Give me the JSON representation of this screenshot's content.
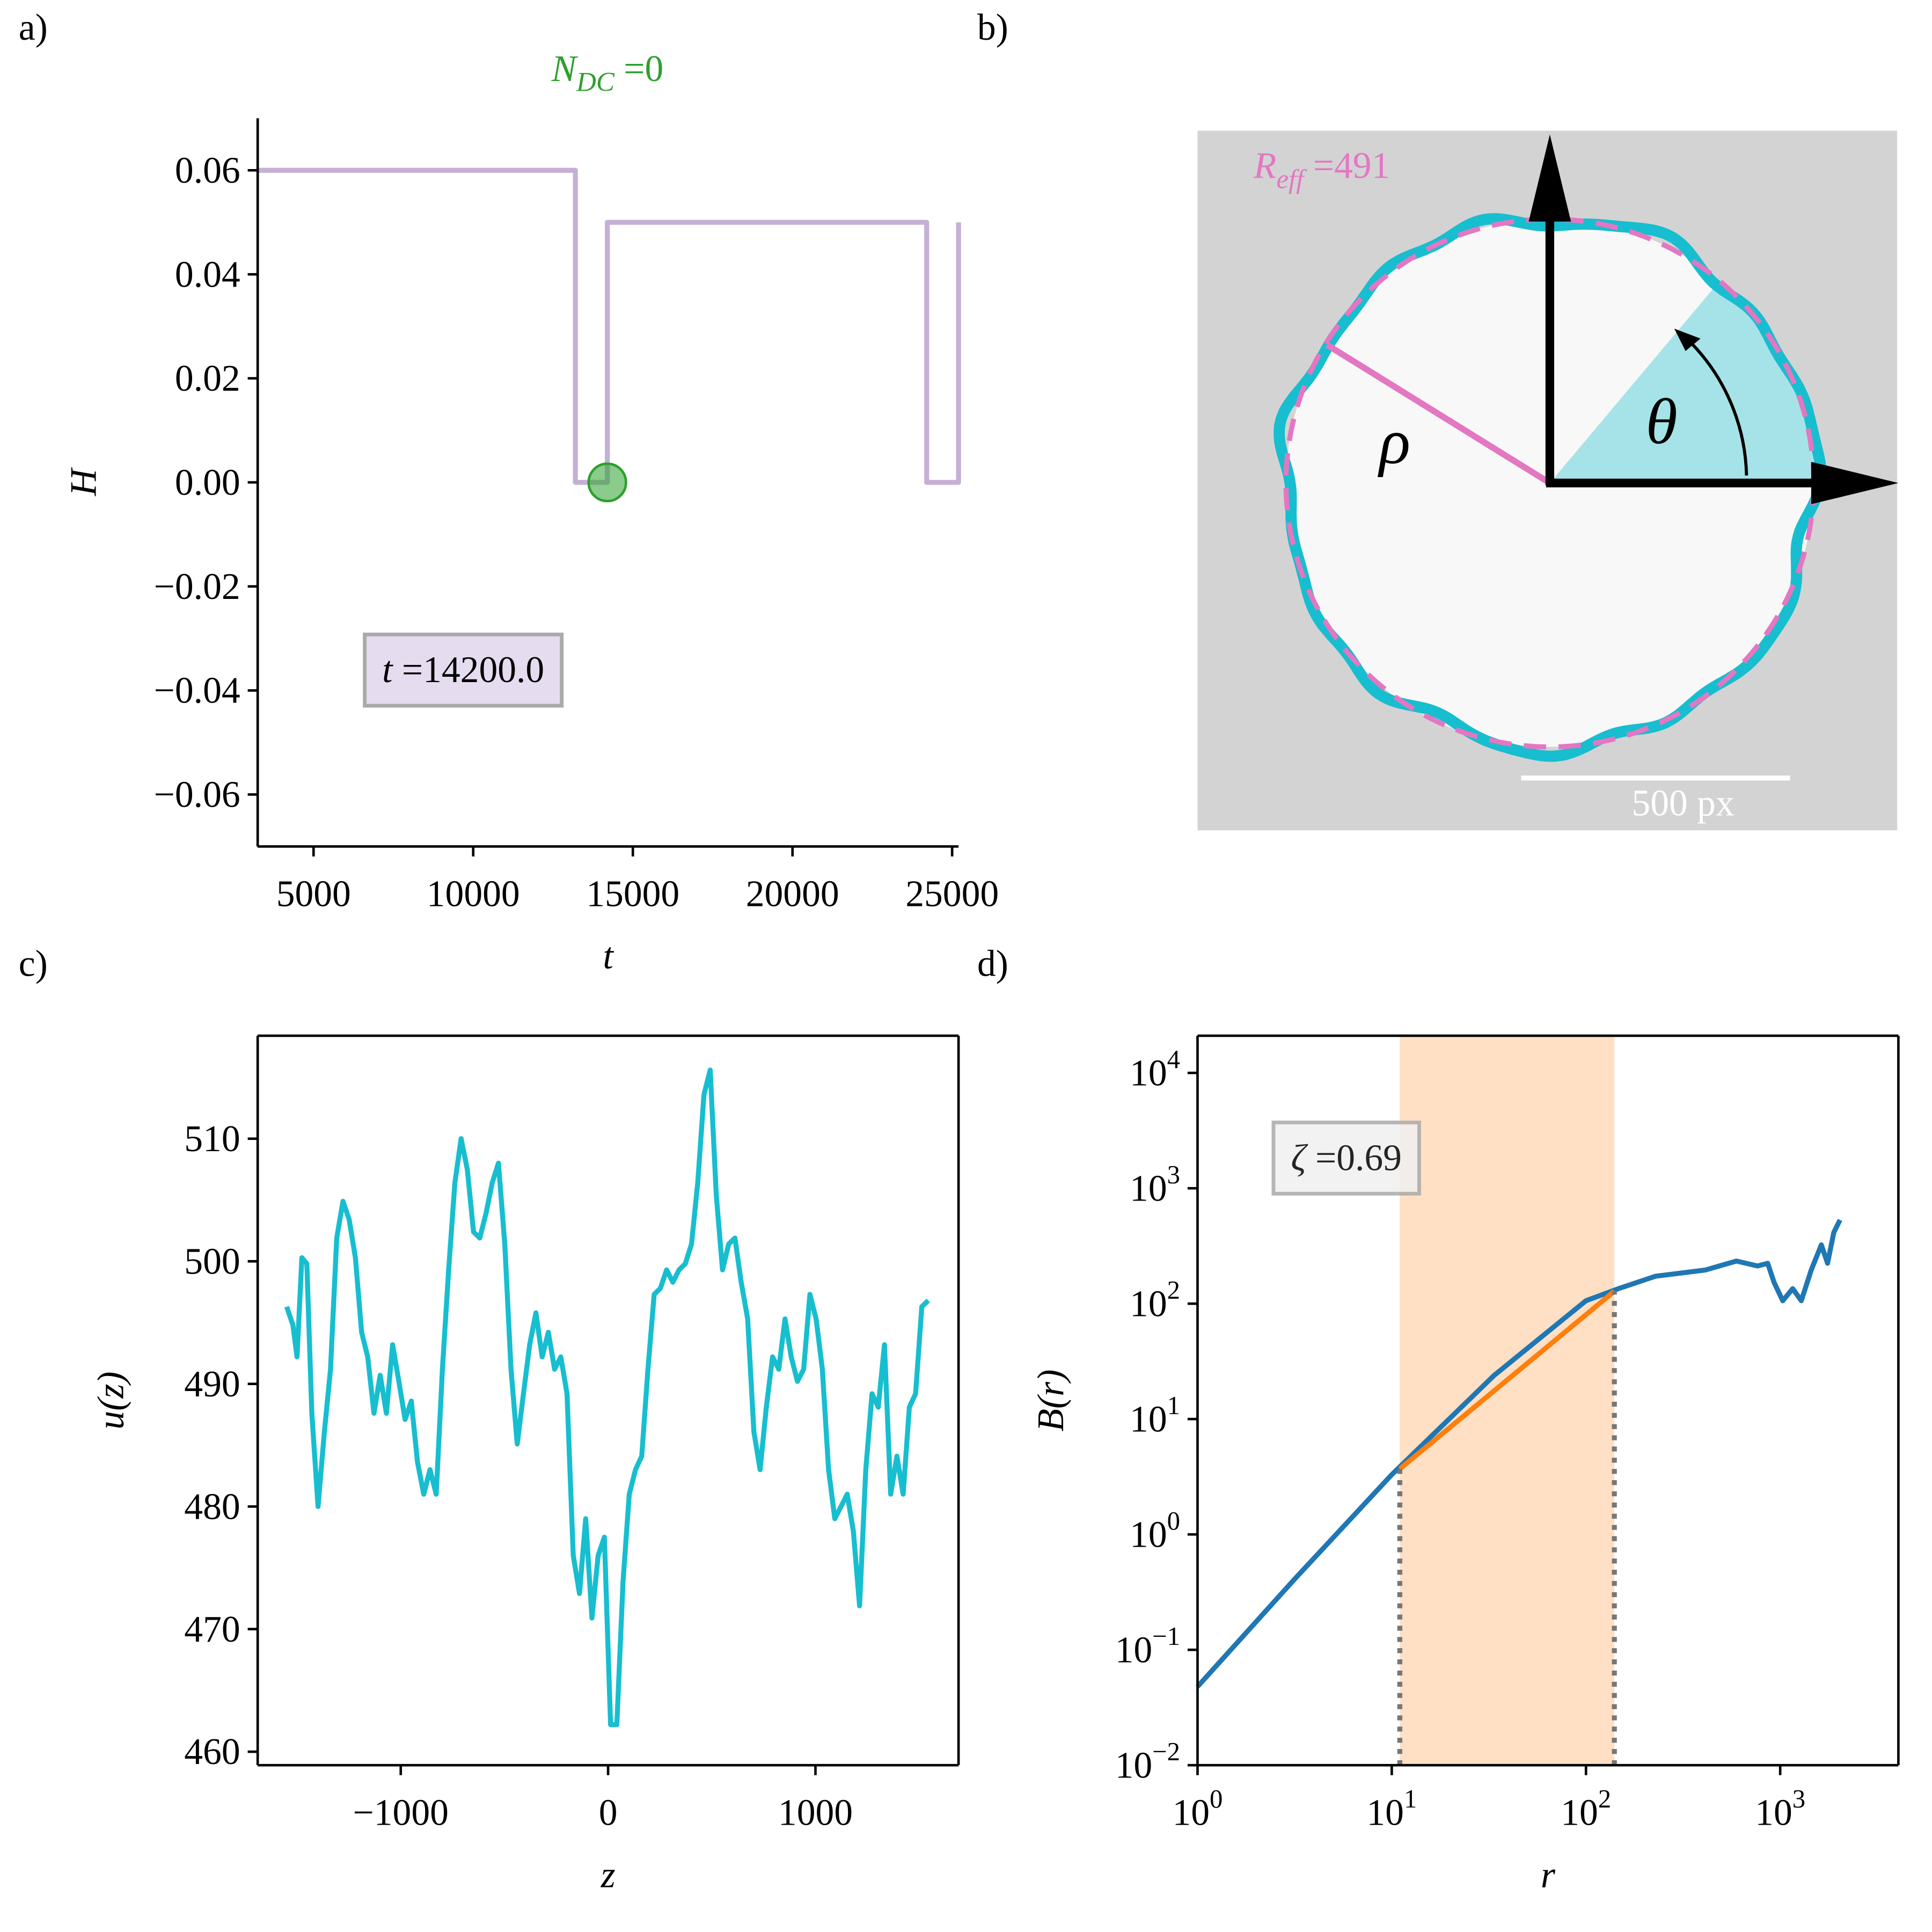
{
  "chart_data": [
    {
      "panel": "a)",
      "type": "line",
      "title": [
        "N",
        "DC",
        " =0"
      ],
      "title_color": "#2ca02c",
      "xlabel": "t",
      "ylabel": "H",
      "spines": [
        "left",
        "bottom"
      ],
      "xlim": [
        3250,
        25200
      ],
      "ylim": [
        -0.07,
        0.07
      ],
      "xticks": [
        5000,
        10000,
        15000,
        20000,
        25000
      ],
      "yticks": [
        0.06,
        0.04,
        0.02,
        {
          "value": 0,
          "label": "0.00"
        },
        {
          "value": -0.02,
          "label": "−0.02"
        },
        {
          "value": -0.04,
          "label": "−0.04"
        },
        {
          "value": -0.06,
          "label": "−0.06"
        }
      ],
      "series": [
        {
          "color": "#c5b0d5",
          "x": [
            3250,
            13200,
            13200,
            14200,
            14200,
            24200,
            24200,
            25200,
            25200
          ],
          "values": [
            0.06,
            0.06,
            0,
            0,
            0.05,
            0.05,
            0,
            0,
            0.05
          ]
        }
      ],
      "points": [
        {
          "x": 14200,
          "y": 0,
          "color": "#2ca02c"
        }
      ],
      "annotation": [
        "t",
        " =14200.0"
      ],
      "annotation_fill": "#e6dcf0"
    },
    {
      "panel": "b)",
      "type": "diagram",
      "annotation": [
        "R",
        "eff",
        " =491"
      ],
      "scale_bar": "500 px",
      "radius_symbol": "ρ",
      "angle_symbol": "θ"
    },
    {
      "panel": "c)",
      "type": "line",
      "xlabel": "z",
      "ylabel": "u(z)",
      "spines": [
        "left",
        "bottom",
        "top",
        "right"
      ],
      "xlim": [
        -1690,
        1690
      ],
      "ylim": [
        458.9,
        518.4
      ],
      "xticks": [
        {
          "value": -1000,
          "label": "−1000"
        },
        0,
        1000
      ],
      "yticks": [
        460,
        470,
        480,
        490,
        500,
        510
      ],
      "series": [
        {
          "color": "#17becf",
          "x": [
            -1550,
            -1520,
            -1500,
            -1477,
            -1453,
            -1429,
            -1399,
            -1369,
            -1339,
            -1309,
            -1279,
            -1249,
            -1219,
            -1189,
            -1159,
            -1129,
            -1099,
            -1069,
            -1039,
            -1009,
            -979,
            -949,
            -919,
            -889,
            -859,
            -829,
            -799,
            -769,
            -739,
            -709,
            -679,
            -649,
            -619,
            -589,
            -559,
            -529,
            -498,
            -468,
            -438,
            -408,
            -378,
            -348,
            -318,
            -288,
            -258,
            -228,
            -198,
            -168,
            -138,
            -108,
            -78,
            -48,
            -18,
            12,
            42,
            72,
            102,
            132,
            162,
            192,
            222,
            252,
            282,
            312,
            342,
            372,
            402,
            432,
            462,
            492,
            522,
            552,
            582,
            612,
            642,
            673,
            703,
            733,
            763,
            793,
            823,
            853,
            883,
            913,
            943,
            973,
            1003,
            1033,
            1063,
            1093,
            1123,
            1153,
            1183,
            1213,
            1243,
            1273,
            1303,
            1333,
            1363,
            1393,
            1423,
            1453,
            1483,
            1513,
            1544
          ],
          "values": [
            496.3,
            494.8,
            492.2,
            500.3,
            499.8,
            487.6,
            480,
            486,
            491.2,
            501.9,
            504.9,
            503.4,
            500.3,
            494.2,
            492.2,
            487.6,
            490.7,
            487.6,
            493.2,
            490.2,
            487.1,
            488.6,
            483.6,
            481,
            483,
            481,
            491.2,
            499.3,
            506.4,
            510,
            507.5,
            502.4,
            501.9,
            503.9,
            506.4,
            508,
            501.4,
            491.2,
            485.1,
            489.2,
            493.2,
            495.8,
            492.2,
            494.2,
            491.2,
            492.2,
            489.2,
            476,
            472.9,
            479,
            470.9,
            476,
            477.5,
            462.2,
            462.2,
            473.9,
            481,
            483,
            484.1,
            491.2,
            497.3,
            497.8,
            499.3,
            498.3,
            499.3,
            499.8,
            501.4,
            506.4,
            513.6,
            515.6,
            505.4,
            499.3,
            501.4,
            501.9,
            498.3,
            495.3,
            486.1,
            483,
            488.1,
            492.2,
            491.2,
            495.3,
            492.2,
            490.2,
            491.2,
            497.3,
            495.3,
            491.2,
            483,
            479,
            480,
            481,
            478,
            471.9,
            483,
            489.2,
            488.1,
            493.2,
            481,
            484.1,
            481,
            488.1,
            489.2,
            496.3,
            496.8
          ]
        }
      ]
    },
    {
      "panel": "d)",
      "type": "line",
      "xlabel": "r",
      "ylabel": "B(r)",
      "xlog": true,
      "ylog": true,
      "spines": [
        "left",
        "bottom",
        "top",
        "right"
      ],
      "xlim": [
        1,
        4060
      ],
      "ylim": [
        0.01,
        21000
      ],
      "xticks": [
        {
          "value": 1,
          "label": [
            "10",
            "0"
          ]
        },
        {
          "value": 10,
          "label": [
            "10",
            "1"
          ]
        },
        {
          "value": 100,
          "label": [
            "10",
            "2"
          ]
        },
        {
          "value": 1000,
          "label": [
            "10",
            "3"
          ]
        }
      ],
      "yticks": [
        {
          "value": 0.01,
          "label": [
            "10",
            "−2"
          ]
        },
        {
          "value": 0.1,
          "label": [
            "10",
            "−1"
          ]
        },
        {
          "value": 1,
          "label": [
            "10",
            "0"
          ]
        },
        {
          "value": 10,
          "label": [
            "10",
            "1"
          ]
        },
        {
          "value": 100,
          "label": [
            "10",
            "2"
          ]
        },
        {
          "value": 1000,
          "label": [
            "10",
            "3"
          ]
        },
        {
          "value": 10000,
          "label": [
            "10",
            "4"
          ]
        }
      ],
      "span": {
        "x": [
          11,
          140
        ],
        "color": "#ffe0c4"
      },
      "series": [
        {
          "color": "#1f77b4",
          "x": [
            1,
            3.16,
            10,
            33.6,
            100,
            147,
            228,
            412,
            595,
            765,
            862,
            930,
            1030,
            1160,
            1285,
            1445,
            1628,
            1753,
            1887,
            2031
          ],
          "values": [
            0.048,
            0.41,
            3.3,
            23.8,
            106,
            135,
            173,
            196,
            234,
            212,
            224,
            153,
            106,
            135,
            106,
            196,
            323,
            224,
            414,
            531
          ]
        },
        {
          "color": "#ff7f0e",
          "x": [
            11,
            140
          ],
          "values": [
            3.7,
            128
          ]
        }
      ],
      "annotation": [
        "ζ",
        " =0.69"
      ],
      "annotation_fill": "#f0f0f0"
    }
  ]
}
